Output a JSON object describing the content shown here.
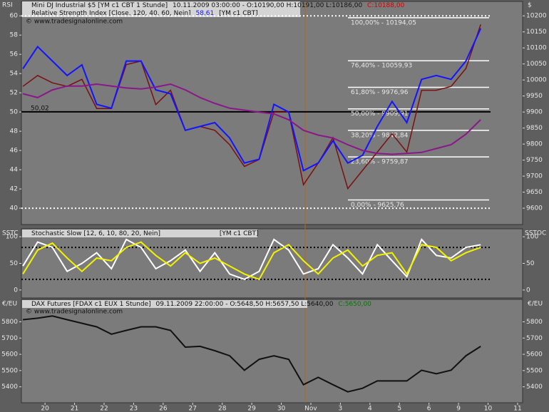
{
  "chart_data": [
    {
      "type": "line",
      "left_label": "RSI",
      "right_label": "$",
      "quote": "10.11.2009 03:00:00 - O:10190,00 H:10191,00 L:10186,00",
      "close": "C:10188,00",
      "rsi_value": "58,61",
      "source_tag": "[YM c1 CBT]",
      "copyright": "© www.tradesignalonline.com",
      "x": [
        0.25,
        0.75,
        1.25,
        1.75,
        2.25,
        2.75,
        3.25,
        3.75,
        4.25,
        4.75,
        5.25,
        5.75,
        6.25,
        6.75,
        7.25,
        7.75,
        8.25,
        8.75,
        9.25,
        9.75,
        10.25,
        10.75,
        11.25,
        11.75,
        12.25,
        12.75,
        13.25,
        13.75,
        14.25,
        14.75,
        15.25,
        15.75
      ],
      "xlim": [
        0.2,
        17.17
      ],
      "ylim": [
        38.3,
        61.5
      ],
      "yticks": [
        40,
        42,
        44,
        46,
        48,
        50,
        52,
        54,
        56,
        58,
        60
      ],
      "y2lim": [
        9549,
        10245
      ],
      "y2ticks": [
        9600,
        9650,
        9700,
        9750,
        9800,
        9850,
        9900,
        9950,
        10000,
        10050,
        10100,
        10150,
        10200
      ],
      "series": [
        {
          "name": "Mini DJ Industrial $5 [YM c1 CBT  1 Stunde]",
          "color": "#7a1010",
          "axis": "y2",
          "values": [
            9980,
            10014,
            9991,
            9980,
            10002,
            9911,
            9911,
            10048,
            10059,
            9923,
            9968,
            9843,
            9855,
            9843,
            9798,
            9730,
            9752,
            9900,
            9900,
            9673,
            9741,
            9820,
            9661,
            9718,
            9775,
            9832,
            9775,
            9968,
            9968,
            9980,
            10036,
            10173
          ]
        },
        {
          "name": "Relative Strength Index [Close, 120, 40, 60, Nein]",
          "color": "#1414ff",
          "values": [
            54.5,
            56.8,
            55.3,
            53.8,
            54.9,
            50.8,
            50.4,
            55.3,
            55.3,
            52.3,
            51.9,
            48.1,
            48.5,
            48.9,
            47.3,
            44.7,
            45.1,
            50.8,
            50.0,
            43.9,
            44.7,
            47.0,
            44.7,
            45.5,
            48.5,
            51.1,
            48.9,
            53.4,
            53.8,
            53.4,
            55.3,
            58.7
          ]
        },
        {
          "color": "#8a188a",
          "values": [
            51.9,
            51.5,
            52.3,
            52.7,
            52.7,
            52.9,
            52.7,
            52.5,
            52.4,
            52.6,
            52.9,
            52.3,
            51.5,
            50.9,
            50.4,
            50.2,
            50.0,
            49.8,
            49.2,
            48.1,
            47.6,
            47.3,
            46.6,
            46.0,
            45.7,
            45.6,
            45.7,
            45.8,
            46.2,
            46.6,
            47.7,
            49.2
          ]
        }
      ],
      "bands": [
        40,
        60
      ],
      "midline": {
        "value": 50.02,
        "label": "50,02"
      },
      "fib_levels": [
        {
          "value": 10194.05,
          "label": "100,00% - 10194,05"
        },
        {
          "value": 10059.93,
          "label": "76,40% - 10059,93"
        },
        {
          "value": 9976.96,
          "label": "61,80% - 9976,96"
        },
        {
          "value": 9909.91,
          "label": "50,00% - 9909,91"
        },
        {
          "value": 9842.84,
          "label": "38,20% - 9842,84"
        },
        {
          "value": 9759.87,
          "label": "23,60% - 9759,87"
        },
        {
          "value": 9625.76,
          "label": "0,00% - 9625,76"
        }
      ]
    },
    {
      "type": "line",
      "left_label": "SSTC",
      "right_label": "SSTOC",
      "title": "Stochastic Slow [12, 6, 10, 80, 20, Nein]",
      "source_tag": "[YM c1 CBT]",
      "x": [
        0.25,
        0.75,
        1.25,
        1.75,
        2.25,
        2.75,
        3.25,
        3.75,
        4.25,
        4.75,
        5.25,
        5.75,
        6.25,
        6.75,
        7.25,
        7.75,
        8.25,
        8.75,
        9.25,
        9.75,
        10.25,
        10.75,
        11.25,
        11.75,
        12.25,
        12.75,
        13.25,
        13.75,
        14.25,
        14.75,
        15.25,
        15.75
      ],
      "xlim": [
        0.2,
        17.17
      ],
      "ylim": [
        -14.9,
        114.9
      ],
      "yticks": [
        0,
        50,
        100
      ],
      "series": [
        {
          "color": "#ffffff",
          "values": [
            45,
            90,
            80,
            35,
            50,
            70,
            40,
            95,
            80,
            40,
            55,
            75,
            35,
            70,
            30,
            20,
            35,
            95,
            75,
            30,
            40,
            85,
            60,
            30,
            85,
            55,
            25,
            95,
            65,
            60,
            80,
            85
          ]
        },
        {
          "color": "#f2f200",
          "values": [
            30,
            75,
            88,
            60,
            35,
            60,
            55,
            80,
            90,
            65,
            45,
            70,
            50,
            60,
            45,
            30,
            20,
            70,
            85,
            55,
            30,
            60,
            75,
            45,
            65,
            70,
            30,
            85,
            80,
            55,
            70,
            80
          ]
        }
      ],
      "bands": [
        20,
        80
      ]
    },
    {
      "type": "line",
      "left_label": "€/EU",
      "right_label": "€/EU",
      "quote": "09.11.2009 22:00:00 - O:5648,50 H:5657,50 L:5640,00",
      "close": "C:5650,00",
      "copyright": "© www.tradesignalonline.com",
      "x": [
        0.25,
        0.75,
        1.25,
        1.75,
        2.25,
        2.75,
        3.25,
        3.75,
        4.25,
        4.75,
        5.25,
        5.75,
        6.25,
        6.75,
        7.25,
        7.75,
        8.25,
        8.75,
        9.25,
        9.75,
        10.25,
        10.75,
        11.25,
        11.75,
        12.25,
        12.75,
        13.25,
        13.75,
        14.25,
        14.75,
        15.25,
        15.75
      ],
      "xlim": [
        0.2,
        17.17
      ],
      "ylim": [
        5302,
        5938
      ],
      "yticks": [
        5400,
        5500,
        5600,
        5700,
        5800
      ],
      "xticks": [
        {
          "value": 1,
          "label": "20"
        },
        {
          "value": 2,
          "label": "21"
        },
        {
          "value": 3,
          "label": "22"
        },
        {
          "value": 4,
          "label": "23"
        },
        {
          "value": 5,
          "label": "26"
        },
        {
          "value": 6,
          "label": "27"
        },
        {
          "value": 7,
          "label": "28"
        },
        {
          "value": 8,
          "label": "29"
        },
        {
          "value": 9,
          "label": "30"
        },
        {
          "value": 10,
          "label": "Nov"
        },
        {
          "value": 11,
          "label": "3"
        },
        {
          "value": 12,
          "label": "4"
        },
        {
          "value": 13,
          "label": "5"
        },
        {
          "value": 14,
          "label": "6"
        },
        {
          "value": 15,
          "label": "9"
        },
        {
          "value": 16,
          "label": "10"
        },
        {
          "value": 17,
          "label": "11"
        }
      ],
      "series": [
        {
          "name": "DAX Futures [FDAX c1 EUX  1 Stunde]",
          "color": "#111111",
          "values": [
            5813,
            5822,
            5836,
            5813,
            5791,
            5769,
            5724,
            5747,
            5769,
            5769,
            5747,
            5644,
            5649,
            5622,
            5591,
            5502,
            5569,
            5591,
            5569,
            5413,
            5458,
            5413,
            5369,
            5391,
            5436,
            5436,
            5436,
            5502,
            5480,
            5502,
            5591,
            5649
          ]
        }
      ]
    }
  ]
}
